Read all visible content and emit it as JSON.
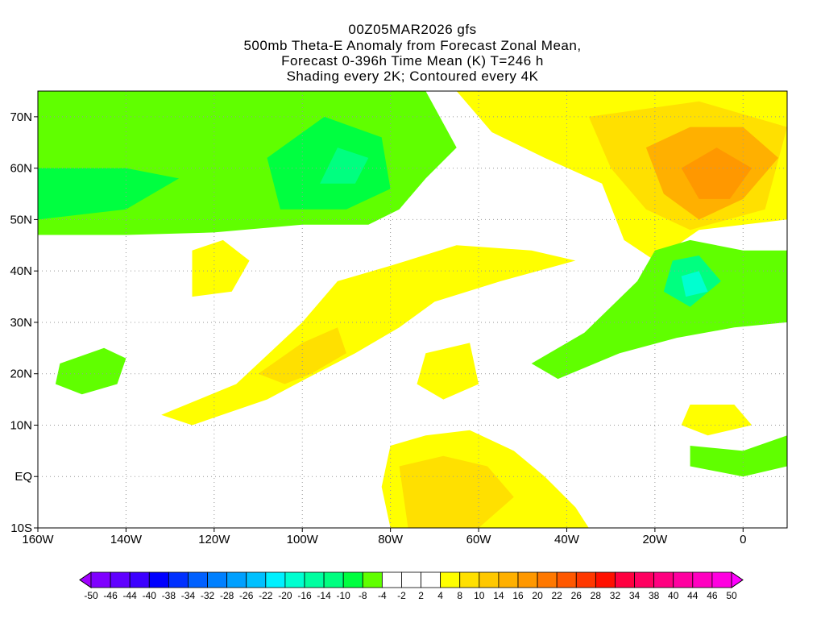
{
  "header": {
    "title_lines": [
      "00Z05MAR2026 gfs",
      "500mb Theta-E Anomaly from Forecast Zonal Mean,",
      "Forecast 0-396h Time Mean (K) T=246 h",
      "Shading every 2K; Contoured every 4K"
    ]
  },
  "chart_data": {
    "type": "heatmap",
    "title": "500mb Theta-E Anomaly from Forecast Zonal Mean, Forecast 0-396h Time Mean (K) T=246 h",
    "xlim": [
      -160,
      10
    ],
    "ylim": [
      -10,
      75
    ],
    "grid": true,
    "x_ticks": [
      {
        "v": -160,
        "label": "160W"
      },
      {
        "v": -140,
        "label": "140W"
      },
      {
        "v": -120,
        "label": "120W"
      },
      {
        "v": -100,
        "label": "100W"
      },
      {
        "v": -80,
        "label": "80W"
      },
      {
        "v": -60,
        "label": "60W"
      },
      {
        "v": -40,
        "label": "40W"
      },
      {
        "v": -20,
        "label": "20W"
      },
      {
        "v": 0,
        "label": "0"
      }
    ],
    "y_ticks": [
      {
        "v": 70,
        "label": "70N"
      },
      {
        "v": 60,
        "label": "60N"
      },
      {
        "v": 50,
        "label": "50N"
      },
      {
        "v": 40,
        "label": "40N"
      },
      {
        "v": 30,
        "label": "30N"
      },
      {
        "v": 20,
        "label": "20N"
      },
      {
        "v": 10,
        "label": "10N"
      },
      {
        "v": 0,
        "label": "EQ"
      },
      {
        "v": -10,
        "label": "10S"
      }
    ],
    "colorbar": {
      "labels": [
        "-50",
        "-46",
        "-44",
        "-40",
        "-38",
        "-34",
        "-32",
        "-28",
        "-26",
        "-22",
        "-20",
        "-16",
        "-14",
        "-10",
        "-8",
        "-4",
        "-2",
        "2",
        "4",
        "8",
        "10",
        "14",
        "16",
        "20",
        "22",
        "26",
        "28",
        "32",
        "34",
        "38",
        "40",
        "44",
        "46",
        "50"
      ],
      "colors": [
        "#7f00ff",
        "#6000ff",
        "#3c00ff",
        "#0000ff",
        "#0030ff",
        "#0060ff",
        "#0080ff",
        "#00a0ff",
        "#00c0ff",
        "#00f0ff",
        "#00ffd0",
        "#00ffa0",
        "#00ff80",
        "#00ff40",
        "#60ff00",
        "#ffffff",
        "#ffffff",
        "#ffffff",
        "#ffff00",
        "#ffe000",
        "#ffc800",
        "#ffb000",
        "#ff9800",
        "#ff7800",
        "#ff5800",
        "#ff3800",
        "#ff1000",
        "#ff0040",
        "#ff0060",
        "#ff0080",
        "#ff00a0",
        "#ff00c0",
        "#ff00e0"
      ],
      "under_color": "#a000ff",
      "over_color": "#ff00ff"
    },
    "regions": [
      {
        "value": -8,
        "color": "#60ff00",
        "poly": [
          [
            -160,
            47
          ],
          [
            -140,
            47
          ],
          [
            -120,
            47.5
          ],
          [
            -100,
            49
          ],
          [
            -85,
            49
          ],
          [
            -78,
            52
          ],
          [
            -72,
            58
          ],
          [
            -65,
            64
          ],
          [
            -72,
            75
          ],
          [
            -160,
            75
          ]
        ]
      },
      {
        "value": -10,
        "color": "#00ff40",
        "poly": [
          [
            -160,
            50
          ],
          [
            -140,
            52
          ],
          [
            -128,
            58
          ],
          [
            -140,
            60
          ],
          [
            -160,
            60
          ]
        ]
      },
      {
        "value": -10,
        "color": "#00ff40",
        "poly": [
          [
            -105,
            52
          ],
          [
            -90,
            52
          ],
          [
            -80,
            56
          ],
          [
            -82,
            66
          ],
          [
            -95,
            70
          ],
          [
            -108,
            62
          ]
        ]
      },
      {
        "value": -14,
        "color": "#00ff80",
        "poly": [
          [
            -96,
            57
          ],
          [
            -88,
            57
          ],
          [
            -85,
            62
          ],
          [
            -92,
            64
          ]
        ]
      },
      {
        "value": 4,
        "color": "#ffff00",
        "poly": [
          [
            -65,
            75
          ],
          [
            -57,
            67
          ],
          [
            -45,
            62
          ],
          [
            -32,
            57
          ],
          [
            -27,
            46
          ],
          [
            -20,
            42
          ],
          [
            -10,
            48
          ],
          [
            10,
            50
          ],
          [
            10,
            75
          ]
        ]
      },
      {
        "value": 8,
        "color": "#ffe000",
        "poly": [
          [
            -35,
            70
          ],
          [
            -30,
            60
          ],
          [
            -22,
            52
          ],
          [
            -12,
            48
          ],
          [
            5,
            52
          ],
          [
            10,
            68
          ],
          [
            -10,
            73
          ]
        ]
      },
      {
        "value": 14,
        "color": "#ffb000",
        "poly": [
          [
            -22,
            64
          ],
          [
            -18,
            55
          ],
          [
            -10,
            50
          ],
          [
            0,
            54
          ],
          [
            8,
            62
          ],
          [
            0,
            68
          ],
          [
            -12,
            68
          ]
        ]
      },
      {
        "value": 16,
        "color": "#ff9800",
        "poly": [
          [
            -14,
            60
          ],
          [
            -10,
            54
          ],
          [
            -3,
            54
          ],
          [
            2,
            60
          ],
          [
            -6,
            64
          ]
        ]
      },
      {
        "value": -8,
        "color": "#60ff00",
        "poly": [
          [
            -20,
            44
          ],
          [
            -12,
            46
          ],
          [
            0,
            44
          ],
          [
            10,
            44
          ],
          [
            10,
            30
          ],
          [
            -2,
            29
          ],
          [
            -15,
            27
          ],
          [
            -28,
            24
          ],
          [
            -42,
            19
          ],
          [
            -48,
            22
          ],
          [
            -36,
            28
          ],
          [
            -24,
            38
          ]
        ]
      },
      {
        "value": -14,
        "color": "#00ff80",
        "poly": [
          [
            -16,
            42
          ],
          [
            -10,
            43
          ],
          [
            -5,
            38
          ],
          [
            -12,
            33
          ],
          [
            -18,
            36
          ]
        ]
      },
      {
        "value": -20,
        "color": "#00ffd0",
        "poly": [
          [
            -14,
            39
          ],
          [
            -10,
            40
          ],
          [
            -8,
            36
          ],
          [
            -13,
            35
          ]
        ]
      },
      {
        "value": -8,
        "color": "#60ff00",
        "poly": [
          [
            -155,
            22
          ],
          [
            -145,
            25
          ],
          [
            -140,
            23
          ],
          [
            -142,
            18
          ],
          [
            -150,
            16
          ],
          [
            -156,
            18
          ]
        ]
      },
      {
        "value": 4,
        "color": "#ffff00",
        "poly": [
          [
            -132,
            12
          ],
          [
            -115,
            18
          ],
          [
            -100,
            30
          ],
          [
            -92,
            38
          ],
          [
            -80,
            41
          ],
          [
            -65,
            45
          ],
          [
            -48,
            44
          ],
          [
            -38,
            42
          ],
          [
            -55,
            38
          ],
          [
            -70,
            34
          ],
          [
            -78,
            29
          ],
          [
            -88,
            24
          ],
          [
            -97,
            20
          ],
          [
            -108,
            15
          ],
          [
            -125,
            10
          ]
        ]
      },
      {
        "value": 8,
        "color": "#ffe000",
        "poly": [
          [
            -110,
            20
          ],
          [
            -100,
            26
          ],
          [
            -92,
            29
          ],
          [
            -90,
            24
          ],
          [
            -98,
            20
          ],
          [
            -104,
            18
          ]
        ]
      },
      {
        "value": 4,
        "color": "#ffff00",
        "poly": [
          [
            -125,
            44
          ],
          [
            -118,
            46
          ],
          [
            -112,
            42
          ],
          [
            -116,
            36
          ],
          [
            -125,
            35
          ]
        ]
      },
      {
        "value": 4,
        "color": "#ffff00",
        "poly": [
          [
            -80,
            6
          ],
          [
            -72,
            8
          ],
          [
            -62,
            9
          ],
          [
            -52,
            5
          ],
          [
            -45,
            0
          ],
          [
            -38,
            -6
          ],
          [
            -35,
            -10
          ],
          [
            -80,
            -10
          ],
          [
            -82,
            -2
          ]
        ]
      },
      {
        "value": 8,
        "color": "#ffe000",
        "poly": [
          [
            -78,
            2
          ],
          [
            -68,
            4
          ],
          [
            -58,
            2
          ],
          [
            -52,
            -4
          ],
          [
            -60,
            -10
          ],
          [
            -76,
            -10
          ]
        ]
      },
      {
        "value": 4,
        "color": "#ffff00",
        "poly": [
          [
            -72,
            24
          ],
          [
            -62,
            26
          ],
          [
            -60,
            18
          ],
          [
            -68,
            15
          ],
          [
            -74,
            18
          ]
        ]
      },
      {
        "value": 4,
        "color": "#ffff00",
        "poly": [
          [
            -12,
            14
          ],
          [
            -2,
            14
          ],
          [
            2,
            10
          ],
          [
            -8,
            8
          ],
          [
            -14,
            10
          ]
        ]
      },
      {
        "value": -8,
        "color": "#60ff00",
        "poly": [
          [
            -12,
            6
          ],
          [
            0,
            5
          ],
          [
            10,
            8
          ],
          [
            10,
            2
          ],
          [
            0,
            0
          ],
          [
            -12,
            2
          ]
        ]
      }
    ]
  }
}
